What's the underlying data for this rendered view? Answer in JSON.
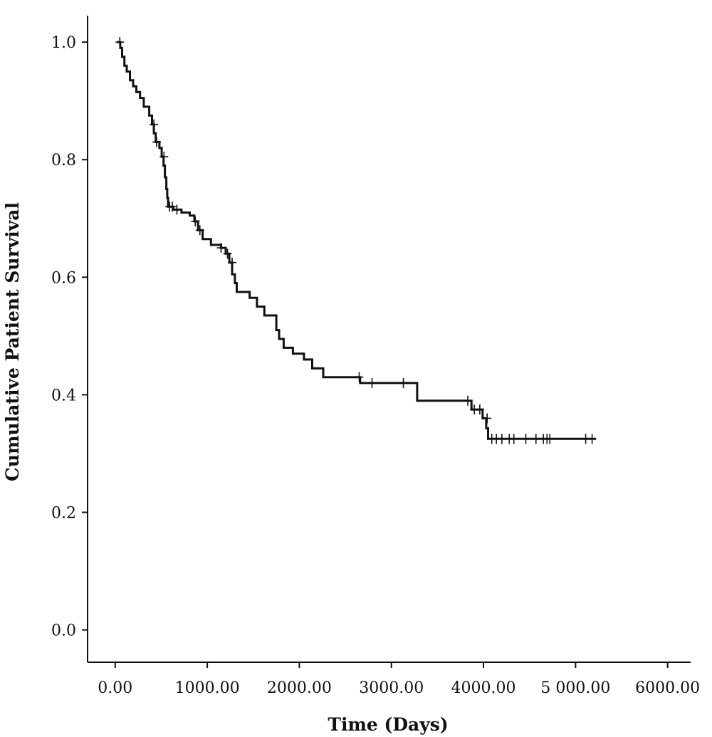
{
  "chart_data": {
    "type": "line",
    "subtype": "kaplan-meier-step",
    "xlabel": "Time (Days)",
    "ylabel": "Cumulative Patient Survival",
    "xlim": [
      -300,
      6250
    ],
    "ylim": [
      -0.055,
      1.045
    ],
    "x_ticks": [
      0,
      1000,
      2000,
      3000,
      4000,
      5000,
      6000
    ],
    "x_tick_labels": [
      "0.00",
      "1000.00",
      "2000.00",
      "3000.00",
      "4000.00",
      "5 000.00",
      "6000.00"
    ],
    "y_ticks": [
      0.0,
      0.2,
      0.4,
      0.6,
      0.8,
      1.0
    ],
    "y_tick_labels": [
      "0.0",
      "0.2",
      "0.4",
      "0.6",
      "0.8",
      "1.0"
    ],
    "grid": false,
    "series": [
      {
        "steps": [
          [
            20,
            1.0
          ],
          [
            55,
            0.99
          ],
          [
            75,
            0.975
          ],
          [
            100,
            0.96
          ],
          [
            125,
            0.95
          ],
          [
            160,
            0.935
          ],
          [
            195,
            0.925
          ],
          [
            230,
            0.915
          ],
          [
            270,
            0.905
          ],
          [
            310,
            0.89
          ],
          [
            370,
            0.875
          ],
          [
            400,
            0.86
          ],
          [
            420,
            0.845
          ],
          [
            440,
            0.83
          ],
          [
            480,
            0.82
          ],
          [
            505,
            0.805
          ],
          [
            525,
            0.79
          ],
          [
            540,
            0.77
          ],
          [
            555,
            0.75
          ],
          [
            565,
            0.735
          ],
          [
            575,
            0.72
          ],
          [
            630,
            0.715
          ],
          [
            720,
            0.71
          ],
          [
            810,
            0.705
          ],
          [
            860,
            0.695
          ],
          [
            900,
            0.68
          ],
          [
            950,
            0.665
          ],
          [
            1040,
            0.655
          ],
          [
            1150,
            0.65
          ],
          [
            1200,
            0.64
          ],
          [
            1240,
            0.625
          ],
          [
            1270,
            0.605
          ],
          [
            1300,
            0.59
          ],
          [
            1320,
            0.575
          ],
          [
            1460,
            0.565
          ],
          [
            1540,
            0.55
          ],
          [
            1620,
            0.535
          ],
          [
            1750,
            0.51
          ],
          [
            1780,
            0.495
          ],
          [
            1830,
            0.48
          ],
          [
            1930,
            0.47
          ],
          [
            2050,
            0.46
          ],
          [
            2140,
            0.445
          ],
          [
            2260,
            0.43
          ],
          [
            2660,
            0.42
          ],
          [
            3280,
            0.39
          ],
          [
            3870,
            0.375
          ],
          [
            3990,
            0.36
          ],
          [
            4030,
            0.343
          ],
          [
            4050,
            0.325
          ],
          [
            5220,
            0.325
          ]
        ],
        "censored": [
          [
            50,
            1.0
          ],
          [
            420,
            0.86
          ],
          [
            450,
            0.83
          ],
          [
            530,
            0.805
          ],
          [
            590,
            0.72
          ],
          [
            620,
            0.72
          ],
          [
            670,
            0.715
          ],
          [
            870,
            0.695
          ],
          [
            920,
            0.68
          ],
          [
            1150,
            0.65
          ],
          [
            1220,
            0.64
          ],
          [
            1270,
            0.625
          ],
          [
            2650,
            0.43
          ],
          [
            2790,
            0.42
          ],
          [
            3130,
            0.42
          ],
          [
            3830,
            0.39
          ],
          [
            3900,
            0.375
          ],
          [
            3960,
            0.375
          ],
          [
            4040,
            0.36
          ],
          [
            4090,
            0.325
          ],
          [
            4140,
            0.325
          ],
          [
            4200,
            0.325
          ],
          [
            4280,
            0.325
          ],
          [
            4330,
            0.325
          ],
          [
            4460,
            0.325
          ],
          [
            4570,
            0.325
          ],
          [
            4650,
            0.325
          ],
          [
            4690,
            0.325
          ],
          [
            4720,
            0.325
          ],
          [
            5110,
            0.325
          ],
          [
            5180,
            0.325
          ]
        ]
      }
    ]
  }
}
